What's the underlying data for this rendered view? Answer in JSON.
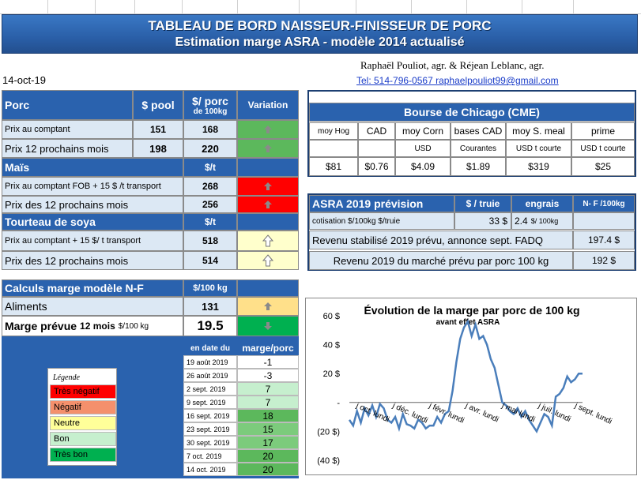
{
  "banner": {
    "title1": "TABLEAU DE BORD NAISSEUR-FINISSEUR DE PORC",
    "title2": "Estimation marge ASRA - modèle 2014 actualisé"
  },
  "authors": {
    "names": "Raphaël Pouliot, agr.   &   Réjean Leblanc, agr.",
    "contact": "Tel:     514-796-0567   raphaelpouliot99@gmail.com"
  },
  "date": "14-oct-19",
  "porc": {
    "h_porc": "Porc",
    "h_pool": "$ pool",
    "h_100kg_1": "$/ porc",
    "h_100kg_2": "de 100kg",
    "h_var": "Variation",
    "rows": [
      {
        "label": "Prix au comptant",
        "pool": "151",
        "val": "168"
      },
      {
        "label": "Prix 12 prochains mois",
        "pool": "198",
        "val": "220"
      }
    ]
  },
  "mais": {
    "h": "Maïs",
    "unit": "$/t",
    "rows": [
      {
        "label": "Prix au comptant  FOB + 15 $ /t transport",
        "val": "268"
      },
      {
        "label": "Prix des 12 prochains mois",
        "val": "256"
      }
    ]
  },
  "soya": {
    "h": "Tourteau de soya",
    "unit": "$/t",
    "rows": [
      {
        "label": "Prix au comptant  + 15 $/ t  transport",
        "val": "518"
      },
      {
        "label": "Prix des 12 prochains mois",
        "val": "514"
      }
    ]
  },
  "cme": {
    "title": "Bourse de Chicago (CME)",
    "headers": [
      "moy Hog",
      "CAD",
      "moy Corn",
      "bases CAD",
      "moy S. meal",
      "prime"
    ],
    "units": [
      "",
      "",
      "USD",
      "Courantes",
      "USD t courte",
      "USD t courte"
    ],
    "values": [
      "$81",
      "$0.76",
      "$4.09",
      "$1.89",
      "$319",
      "$25"
    ]
  },
  "asra": {
    "title": "ASRA 2019 prévision",
    "h_truie": "$ / truie",
    "h_engrais": "engrais",
    "h_nf": "N- F /100kg",
    "cot_label": "cotisation $/100kg  $/truie",
    "cot_val": "33  $",
    "engrais_val": "2.4",
    "engrais_unit": "$/ 100kg",
    "rev1_label": "Revenu stabilisé 2019 prévu, annonce sept. FADQ",
    "rev1_val": "197.4 $",
    "rev2_label": "Revenu  2019 du marché prévu par porc 100 kg",
    "rev2_val": "192 $"
  },
  "calc": {
    "h": "Calculs marge  modèle N-F",
    "unit": "$/100 kg",
    "aliments_label": "Aliments",
    "aliments_val": "131",
    "marge_label": "Marge prévue",
    "marge_sub": "12 mois",
    "marge_unit": "$/100 kg",
    "marge_val": "19.5"
  },
  "history": {
    "h_date": "en date du",
    "h_marge": "marge/porc",
    "rows": [
      {
        "d": "19 août 2019",
        "v": "-1"
      },
      {
        "d": "26 août 2019",
        "v": "-3"
      },
      {
        "d": "2 sept. 2019",
        "v": "7"
      },
      {
        "d": "9 sept. 2019",
        "v": "7"
      },
      {
        "d": "16 sept. 2019",
        "v": "18"
      },
      {
        "d": "23 sept. 2019",
        "v": "15"
      },
      {
        "d": "30 sept. 2019",
        "v": "17"
      },
      {
        "d": "7 oct. 2019",
        "v": "20"
      },
      {
        "d": "14 oct. 2019",
        "v": "20"
      }
    ]
  },
  "legend": {
    "title": "Légende",
    "items": [
      {
        "label": "Très négatif",
        "color": "#ff0000"
      },
      {
        "label": "Négatif",
        "color": "#f4906c"
      },
      {
        "label": "Neutre",
        "color": "#ffff99"
      },
      {
        "label": "Bon",
        "color": "#c6efce"
      },
      {
        "label": "Très bon",
        "color": "#00b050"
      }
    ]
  },
  "colors": {
    "green": "#5cb85c",
    "red": "#ff0000",
    "yellow": "#ffff99",
    "lightyellow": "#ffffcc",
    "brightgreen": "#00b050"
  },
  "chart_data": {
    "type": "line",
    "title": "Évolution de la marge par porc de 100 kg",
    "annotation": "avant effet ASRA",
    "y_ticks": [
      "60 $",
      "40 $",
      "20 $",
      "-",
      "(20 $)",
      "(40 $)"
    ],
    "ylim": [
      -40,
      60
    ],
    "x_ticks": [
      "j oct. lundi",
      "j déc. lundi",
      "j févr. lundi",
      "j avr. lundi",
      "j mai lundi",
      "j juil. lundi",
      "j sept. lundi"
    ],
    "values": [
      -12,
      -16,
      -6,
      -14,
      -4,
      -9,
      -2,
      -10,
      -1,
      -4,
      -12,
      -14,
      -10,
      -18,
      -8,
      -15,
      -16,
      -18,
      -12,
      -14,
      -18,
      -16,
      -16,
      -10,
      -14,
      -8,
      -6,
      8,
      28,
      44,
      52,
      56,
      46,
      54,
      44,
      46,
      40,
      30,
      24,
      12,
      0,
      -2,
      -6,
      -8,
      -4,
      -10,
      -6,
      -12,
      -16,
      -20,
      -14,
      -8,
      -10,
      -16,
      4,
      6,
      10,
      18,
      14,
      16,
      20,
      20
    ]
  }
}
